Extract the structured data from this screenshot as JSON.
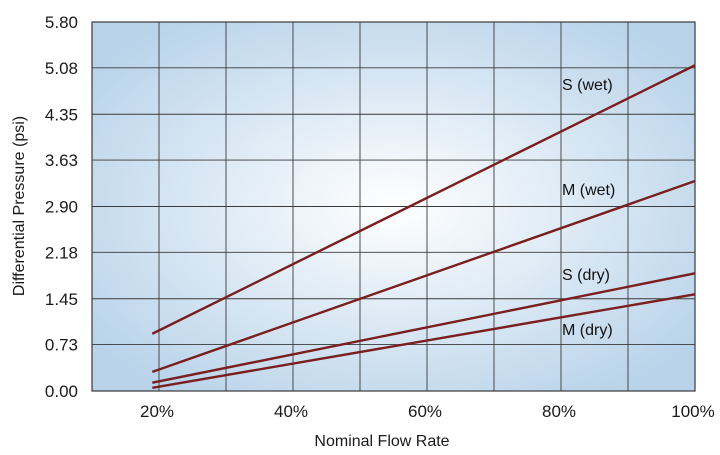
{
  "chart_data": {
    "type": "line",
    "title": "",
    "xlabel": "Nominal Flow Rate",
    "ylabel": "Differential Pressure (psi)",
    "x_tick_labels": [
      "20%",
      "40%",
      "60%",
      "80%",
      "100%"
    ],
    "x_ticks": [
      20,
      40,
      60,
      80,
      100
    ],
    "y_tick_labels": [
      "0.00",
      "0.73",
      "1.45",
      "2.18",
      "2.90",
      "3.63",
      "4.35",
      "5.08",
      "5.80"
    ],
    "y_ticks": [
      0.0,
      0.73,
      1.45,
      2.18,
      2.9,
      3.63,
      4.35,
      5.08,
      5.8
    ],
    "xlim": [
      10,
      100
    ],
    "ylim": [
      0,
      5.8
    ],
    "grid": true,
    "line_color": "#7a1f1f",
    "background_edge_color": "#b9d3ea",
    "background_center_color": "#ffffff",
    "series": [
      {
        "name": "S (wet)",
        "x": [
          19,
          100
        ],
        "y": [
          0.9,
          5.12
        ]
      },
      {
        "name": "M (wet)",
        "x": [
          19,
          100
        ],
        "y": [
          0.3,
          3.3
        ]
      },
      {
        "name": "S (dry)",
        "x": [
          19,
          100
        ],
        "y": [
          0.13,
          1.85
        ]
      },
      {
        "name": "M (dry)",
        "x": [
          19,
          100
        ],
        "y": [
          0.05,
          1.52
        ]
      }
    ]
  }
}
